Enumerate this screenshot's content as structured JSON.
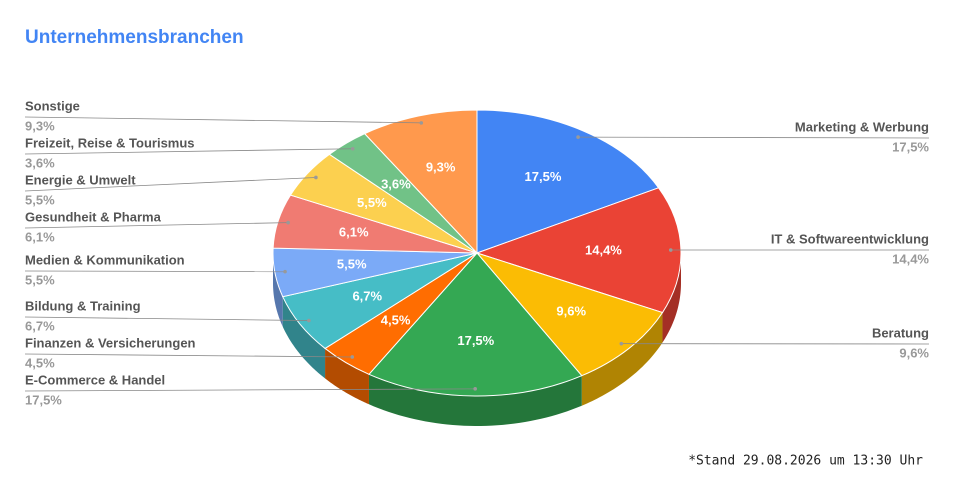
{
  "chart_data": {
    "type": "pie",
    "title": "Unternehmensbranchen",
    "categories": [
      "Marketing & Werbung",
      "IT & Softwareentwicklung",
      "Beratung",
      "E-Commerce & Handel",
      "Finanzen & Versicherungen",
      "Bildung & Training",
      "Medien & Kommunikation",
      "Gesundheit & Pharma",
      "Energie & Umwelt",
      "Freizeit, Reise & Tourismus",
      "Sonstige"
    ],
    "values": [
      17.5,
      14.4,
      9.6,
      17.5,
      4.5,
      6.7,
      5.5,
      6.1,
      5.5,
      3.6,
      9.3
    ],
    "value_labels": [
      "17,5%",
      "14,4%",
      "9,6%",
      "17,5%",
      "4,5%",
      "6,7%",
      "5,5%",
      "6,1%",
      "5,5%",
      "3,6%",
      "9,3%"
    ],
    "colors": [
      "#4285f4",
      "#ea4335",
      "#fbbc04",
      "#34a853",
      "#ff6d01",
      "#46bdc6",
      "#7baaf7",
      "#f07b72",
      "#fcd04f",
      "#71c287",
      "#ff994d"
    ],
    "three_d": true,
    "note": "*Stand 29.08.2026 um 13:30 Uhr"
  }
}
